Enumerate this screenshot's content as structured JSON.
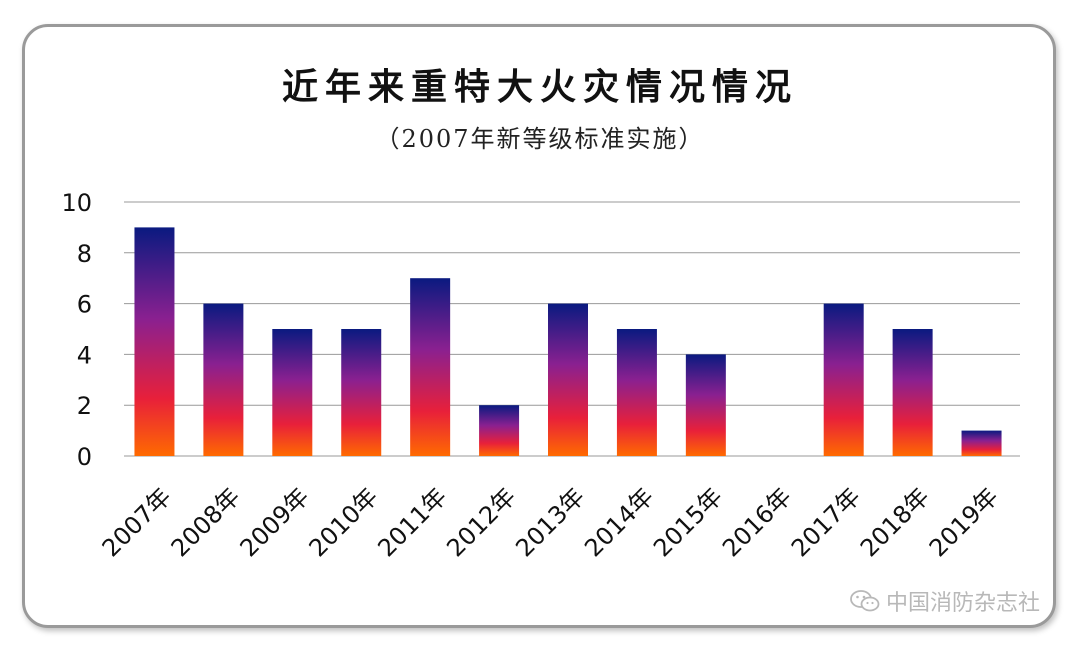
{
  "chart_data": {
    "type": "bar",
    "title": "近年来重特大火灾情况情况",
    "subtitle": "（2007年新等级标准实施）",
    "categories": [
      "2007年",
      "2008年",
      "2009年",
      "2010年",
      "2011年",
      "2012年",
      "2013年",
      "2014年",
      "2015年",
      "2016年",
      "2017年",
      "2018年",
      "2019年"
    ],
    "values": [
      9,
      6,
      5,
      5,
      7,
      2,
      6,
      5,
      4,
      0,
      6,
      5,
      1
    ],
    "ylim": [
      0,
      10
    ],
    "yticks": [
      0,
      2,
      4,
      6,
      8,
      10
    ],
    "grid": true,
    "legend": "none",
    "xlabel": "",
    "ylabel": "",
    "colors": {
      "bar_top": "#0a1a80",
      "bar_mid": "#8a2090",
      "bar_low": "#e8203a",
      "bar_bottom": "#ff6a00",
      "grid": "#999999"
    }
  },
  "watermark": {
    "icon": "wechat-icon",
    "text": "中国消防杂志社"
  }
}
